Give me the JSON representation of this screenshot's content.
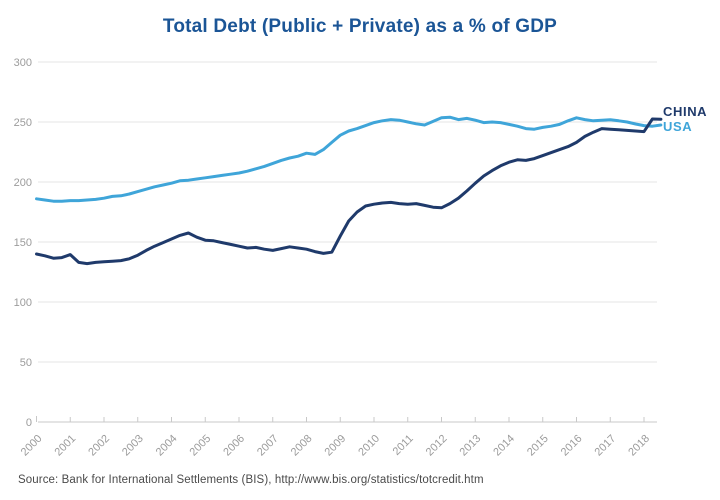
{
  "title": "Total Debt (Public + Private) as a % of GDP",
  "source": "Source: Bank for International Settlements (BIS), http://www.bis.org/statistics/totcredit.htm",
  "colors": {
    "title": "#1B5596",
    "china": "#1F3A6B",
    "usa": "#3FA5D9",
    "grid": "#E4E4E4",
    "axis": "#C8C8C8",
    "tick_label": "#9C9C9C",
    "source_text": "#4A4A4A",
    "background": "#FFFFFF"
  },
  "chart_data": {
    "type": "line",
    "title": "Total Debt (Public + Private) as a % of GDP",
    "xlabel": "",
    "ylabel": "",
    "ylim": [
      0,
      300
    ],
    "y_ticks": [
      0,
      50,
      100,
      150,
      200,
      250,
      300
    ],
    "x_tick_labels": [
      "2000",
      "2001",
      "2002",
      "2003",
      "2004",
      "2005",
      "2006",
      "2007",
      "2008",
      "2009",
      "2010",
      "2011",
      "2012",
      "2013",
      "2014",
      "2015",
      "2016",
      "2017",
      "2018"
    ],
    "x_start_year": 2000,
    "x_step_years": 0.25,
    "grid": true,
    "legend_position": "right-of-line-end",
    "series": [
      {
        "name": "USA",
        "color": "#3FA5D9",
        "values": [
          186,
          185,
          184,
          184,
          184.5,
          184.5,
          185,
          185.5,
          186.5,
          188,
          188.5,
          190,
          192,
          194,
          196,
          197.5,
          199,
          201,
          201.5,
          202.5,
          203.5,
          204.5,
          205.5,
          206.5,
          207.5,
          209,
          211,
          213,
          215.5,
          218,
          220,
          221.5,
          224,
          223,
          227,
          233,
          239,
          242.5,
          244.5,
          247,
          249.5,
          251,
          252,
          251.5,
          250,
          248.5,
          247.5,
          250.5,
          253.5,
          254,
          252,
          253,
          251.5,
          249.5,
          250,
          249.5,
          248,
          246.5,
          244.5,
          244,
          245.5,
          246.5,
          248,
          251,
          253.5,
          252,
          251,
          251.5,
          251.8,
          251,
          250,
          248.3,
          247,
          246.5,
          247.5
        ]
      },
      {
        "name": "CHINA",
        "color": "#1F3A6B",
        "values": [
          140,
          138.5,
          136.5,
          137,
          139.5,
          133,
          132,
          133,
          133.5,
          134,
          134.5,
          136,
          139,
          143,
          146.5,
          149.5,
          152.5,
          155.5,
          157.5,
          154,
          151.5,
          151,
          149.5,
          148,
          146.5,
          145,
          145.5,
          144,
          143,
          144.5,
          146,
          145,
          144,
          142,
          140.5,
          141.5,
          155,
          167.5,
          175,
          180,
          181.5,
          182.5,
          183,
          182,
          181.5,
          182,
          180.5,
          179,
          178.5,
          182,
          186.5,
          192.5,
          199,
          205,
          209.5,
          213.5,
          216.5,
          218.5,
          218,
          219.5,
          222,
          224.5,
          227,
          229.5,
          233,
          238,
          241.5,
          244.5,
          244,
          243.5,
          243,
          242.5,
          242,
          252.5,
          252.3
        ]
      }
    ]
  },
  "legend": {
    "china_label": "CHINA",
    "usa_label": "USA"
  }
}
